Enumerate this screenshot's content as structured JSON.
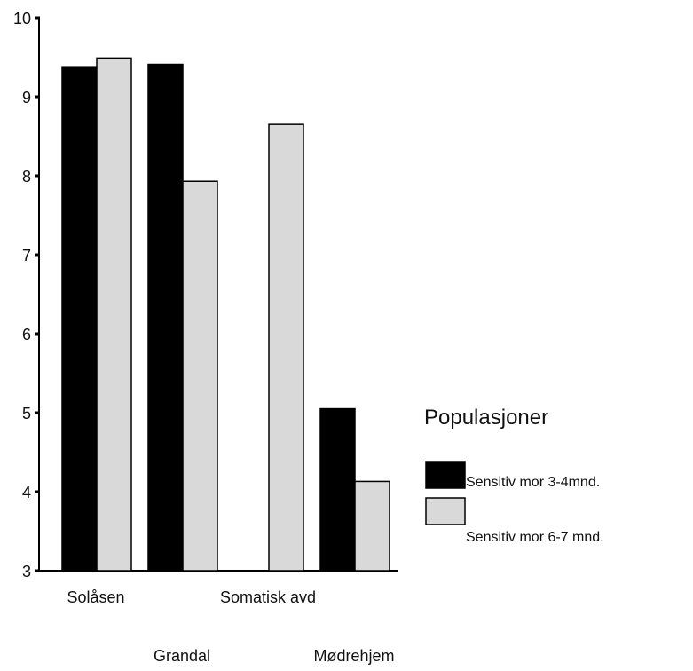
{
  "chart_data": {
    "type": "bar",
    "categories": [
      "Solåsen",
      "Grandal",
      "Somatisk avd",
      "Mødrehjem"
    ],
    "series": [
      {
        "name": "Sensitiv mor 3-4mnd.",
        "values": [
          9.38,
          9.41,
          null,
          5.05
        ],
        "color": "#000000"
      },
      {
        "name": "Sensitiv mor 6-7 mnd.",
        "values": [
          9.49,
          7.93,
          8.65,
          4.13
        ],
        "color": "#d9d9d9"
      }
    ],
    "y_ticks": [
      "3",
      "4",
      "5",
      "6",
      "7",
      "8",
      "9",
      "10"
    ],
    "ylim": [
      3,
      10
    ],
    "legend_title": "Populasjoner",
    "legend_position": "right",
    "grid": false,
    "title": "",
    "xlabel": "",
    "ylabel": ""
  }
}
